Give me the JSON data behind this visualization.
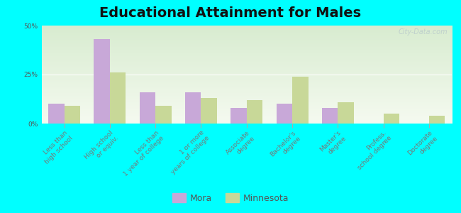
{
  "title": "Educational Attainment for Males",
  "categories": [
    "Less than\nhigh school",
    "High school\nor equiv.",
    "Less than\n1 year of college",
    "1 or more\nyears of college",
    "Associate\ndegree",
    "Bachelor's\ndegree",
    "Master's\ndegree",
    "Profess.\nschool degree",
    "Doctorate\ndegree"
  ],
  "mora_values": [
    10,
    43,
    16,
    16,
    8,
    10,
    8,
    0,
    0
  ],
  "minnesota_values": [
    9,
    26,
    9,
    13,
    12,
    24,
    11,
    5,
    4
  ],
  "mora_color": "#c8a8d8",
  "minnesota_color": "#c8d898",
  "background_color": "#00ffff",
  "ylim": [
    0,
    50
  ],
  "yticks": [
    0,
    25,
    50
  ],
  "ytick_labels": [
    "0%",
    "25%",
    "50%"
  ],
  "bar_width": 0.35,
  "legend_labels": [
    "Mora",
    "Minnesota"
  ],
  "title_fontsize": 14,
  "tick_fontsize": 6.5,
  "watermark": "City-Data.com"
}
